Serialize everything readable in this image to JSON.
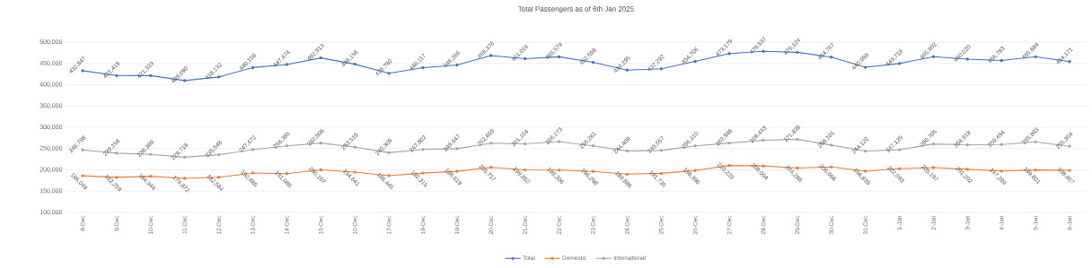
{
  "chart_data": {
    "type": "line",
    "title": "Total Passengers as of 6th Jan 2025",
    "categories": [
      "8-Dec",
      "9-Dec",
      "10-Dec",
      "11-Dec",
      "12-Dec",
      "13-Dec",
      "14-Dec",
      "15-Dec",
      "16-Dec",
      "17-Dec",
      "18-Dec",
      "19-Dec",
      "20-Dec",
      "21-Dec",
      "22-Dec",
      "23-Dec",
      "24-Dec",
      "25-Dec",
      "26-Dec",
      "27-Dec",
      "28-Dec",
      "29-Dec",
      "30-Dec",
      "31-Dec",
      "1-Jan",
      "2-Jan",
      "3-Jan",
      "4-Jan",
      "5-Jan",
      "6-Jan"
    ],
    "series": [
      {
        "name": "Total",
        "color": "#4472c4",
        "values": [
          432847,
          421415,
          421333,
          409690,
          418132,
          440158,
          447474,
          462913,
          448156,
          426750,
          440117,
          446266,
          468376,
          461016,
          465579,
          452559,
          434295,
          437292,
          454706,
          473179,
          478537,
          476124,
          464767,
          440959,
          449718,
          465902,
          460020,
          456783,
          465684,
          454171
        ],
        "value_labels": [
          "432,847",
          "421,415",
          "421,333",
          "409,690",
          "418,132",
          "440,158",
          "447,474",
          "462,913",
          "448,156",
          "426,750",
          "440,117",
          "446,266",
          "468,376",
          "461,016",
          "465,579",
          "452,559",
          "434,295",
          "437,292",
          "454,706",
          "473,179",
          "478,537",
          "476,124",
          "464,767",
          "440,959",
          "449,718",
          "465,902",
          "460,020",
          "456,783",
          "465,684",
          "454,171"
        ]
      },
      {
        "name": "Domestic",
        "color": "#ed7d31",
        "values": [
          186049,
          182259,
          184944,
          179972,
          182584,
          192686,
          191089,
          200107,
          194641,
          186445,
          192315,
          196619,
          205717,
          199852,
          199306,
          196298,
          189886,
          191735,
          198396,
          210233,
          209094,
          204288,
          206666,
          196839,
          202593,
          205197,
          201202,
          197289,
          199801,
          198867
        ],
        "value_labels": [
          "186,049",
          "182,259",
          "184,944",
          "179,972",
          "182,584",
          "192,686",
          "191,089",
          "200,107",
          "194,641",
          "186,445",
          "192,315",
          "196,619",
          "205,717",
          "199,852",
          "199,306",
          "196,298",
          "189,886",
          "191,735",
          "198,396",
          "210,233",
          "209,094",
          "204,288",
          "206,666",
          "196,839",
          "202,593",
          "205,197",
          "201,202",
          "197,289",
          "199,801",
          "198,867"
        ]
      },
      {
        "name": "International",
        "color": "#a5a5a5",
        "values": [
          246798,
          239156,
          236389,
          229718,
          235548,
          247472,
          256385,
          262806,
          253515,
          240305,
          247802,
          249647,
          262659,
          261164,
          266273,
          256261,
          244409,
          245557,
          256310,
          262946,
          269443,
          271836,
          258101,
          244120,
          247125,
          260705,
          258818,
          259494,
          265883,
          255304
        ],
        "value_labels": [
          "246,798",
          "239,156",
          "236,389",
          "229,718",
          "235,548",
          "247,472",
          "256,385",
          "262,806",
          "253,515",
          "240,305",
          "247,802",
          "249,647",
          "262,659",
          "261,164",
          "266,273",
          "256,261",
          "244,409",
          "245,557",
          "256,310",
          "262,946",
          "269,443",
          "271,836",
          "258,101",
          "244,120",
          "247,125",
          "260,705",
          "258,818",
          "259,494",
          "265,883",
          "255,304"
        ]
      }
    ],
    "ylim": [
      100000,
      500000
    ],
    "yticks": [
      {
        "value": 100000,
        "label": "100,000"
      },
      {
        "value": 150000,
        "label": "150,000"
      },
      {
        "value": 200000,
        "label": "200,000"
      },
      {
        "value": 250000,
        "label": "250,000"
      },
      {
        "value": 300000,
        "label": "300,000"
      },
      {
        "value": 350000,
        "label": "350,000"
      },
      {
        "value": 400000,
        "label": "400,000"
      },
      {
        "value": 450000,
        "label": "450,000"
      },
      {
        "value": 500000,
        "label": "500,000"
      }
    ],
    "grid": "y",
    "legend": "bottom",
    "marker": "circle",
    "line_style": "solid"
  }
}
